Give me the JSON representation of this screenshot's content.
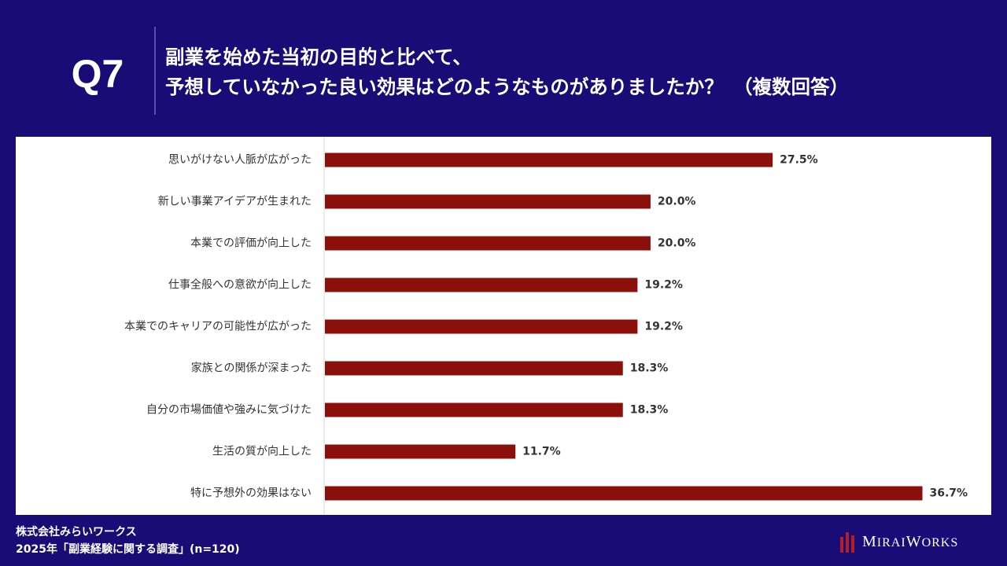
{
  "header": {
    "question_label": "Q7",
    "title_line1": "副業を始めた当初の目的と比べて、",
    "title_line2": "予想していなかった良い効果はどのようなものがありましたか？　（複数回答）"
  },
  "footer": {
    "company": "株式会社みらいワークス",
    "survey": "2025年「副業経験に関する調査」(n=120)"
  },
  "logo": {
    "text": "MiraiWorks"
  },
  "colors": {
    "background": "#1a0c76",
    "bar": "#8b0f0a",
    "panel": "#ffffff",
    "label_text": "#333333"
  },
  "chart_data": {
    "type": "bar",
    "orientation": "horizontal",
    "categories": [
      "思いがけない人脈が広がった",
      "新しい事業アイデアが生まれた",
      "本業での評価が向上した",
      "仕事全般への意欲が向上した",
      "本業でのキャリアの可能性が広がった",
      "家族との関係が深まった",
      "自分の市場価値や強みに気づけた",
      "生活の質が向上した",
      "特に予想外の効果はない"
    ],
    "values": [
      27.5,
      20.0,
      20.0,
      19.2,
      19.2,
      18.3,
      18.3,
      11.7,
      36.7
    ],
    "value_labels": [
      "27.5%",
      "20.0%",
      "20.0%",
      "19.2%",
      "19.2%",
      "18.3%",
      "18.3%",
      "11.7%",
      "36.7%"
    ],
    "xlim": [
      0,
      37.4
    ],
    "grid": false,
    "legend": "none"
  }
}
